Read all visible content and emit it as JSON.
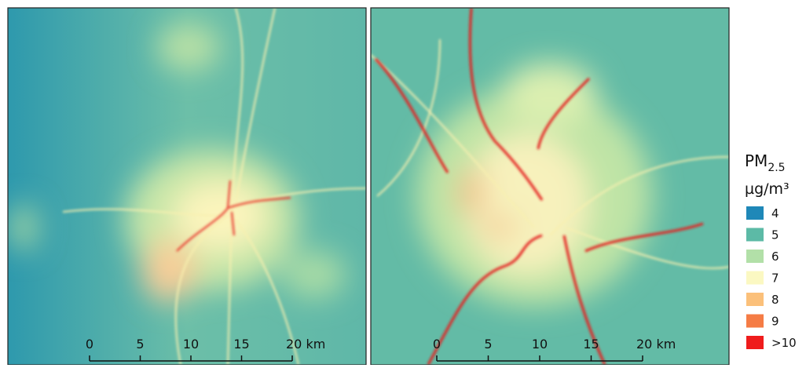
{
  "legend": {
    "title": "PM",
    "title_subscript": "2.5",
    "unit": "µg/m³",
    "items": [
      {
        "label": "4",
        "color": "#1f88b8"
      },
      {
        "label": "5",
        "color": "#5cbaa6"
      },
      {
        "label": "6",
        "color": "#b2e0a8"
      },
      {
        "label": "7",
        "color": "#fbf8c2"
      },
      {
        "label": "8",
        "color": "#fbc07a"
      },
      {
        "label": "9",
        "color": "#f57c45"
      },
      {
        "label": ">10",
        "color": "#ef1c1c"
      }
    ]
  },
  "panels": [
    {
      "scale_bar": [
        "0",
        "5",
        "10",
        "15",
        "20 km"
      ]
    },
    {
      "scale_bar": [
        "0",
        "5",
        "10",
        "15",
        "20 km"
      ]
    }
  ]
}
